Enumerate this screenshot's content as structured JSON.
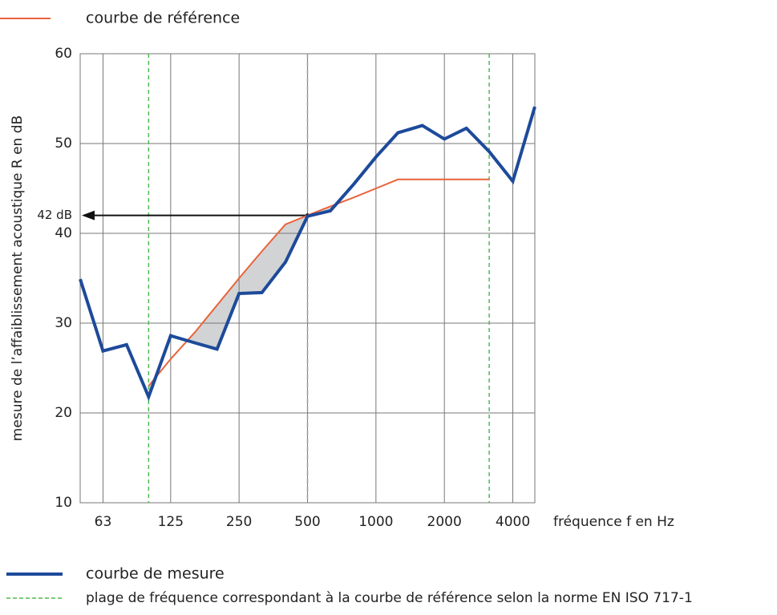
{
  "chart_data": {
    "type": "line",
    "x_log": true,
    "y_label": "mesure de l’affaiblissement acoustique R en dB",
    "x_label": "fréquence f en Hz",
    "x": [
      50,
      63,
      80,
      100,
      125,
      160,
      200,
      250,
      315,
      400,
      500,
      630,
      800,
      1000,
      1250,
      1600,
      2000,
      2500,
      3150,
      4000,
      5000
    ],
    "series": [
      {
        "name": "courbe de mesure",
        "color": "#1d4a9a",
        "values": [
          34.9,
          26.9,
          27.6,
          21.8,
          28.6,
          27.8,
          27.1,
          33.3,
          33.4,
          36.8,
          41.9,
          42.5,
          45.5,
          48.5,
          51.2,
          52.0,
          50.5,
          51.7,
          49.1,
          45.8,
          54.1
        ]
      },
      {
        "name": "courbe de référence",
        "color": "#e8643a",
        "values": [
          null,
          null,
          null,
          23,
          26,
          29,
          32,
          35,
          38,
          41,
          42,
          43,
          44,
          45,
          46,
          46,
          46,
          46,
          46,
          null,
          null
        ]
      }
    ],
    "range": {
      "name": "plage de fréquence correspondant à la courbe de référence selon la norme EN ISO 717-1",
      "color": "#4dbb4d",
      "values": [
        100,
        3150
      ]
    },
    "shade_color": "#d2d3d5",
    "annotation": {
      "text": "42 dB",
      "x": 500,
      "y": 42
    },
    "xlim": [
      50,
      5000
    ],
    "xticks": [
      63,
      125,
      250,
      500,
      1000,
      2000,
      4000
    ],
    "ylim": [
      10,
      60
    ],
    "yticks": [
      10,
      20,
      30,
      40,
      50,
      60
    ],
    "grid": true
  }
}
